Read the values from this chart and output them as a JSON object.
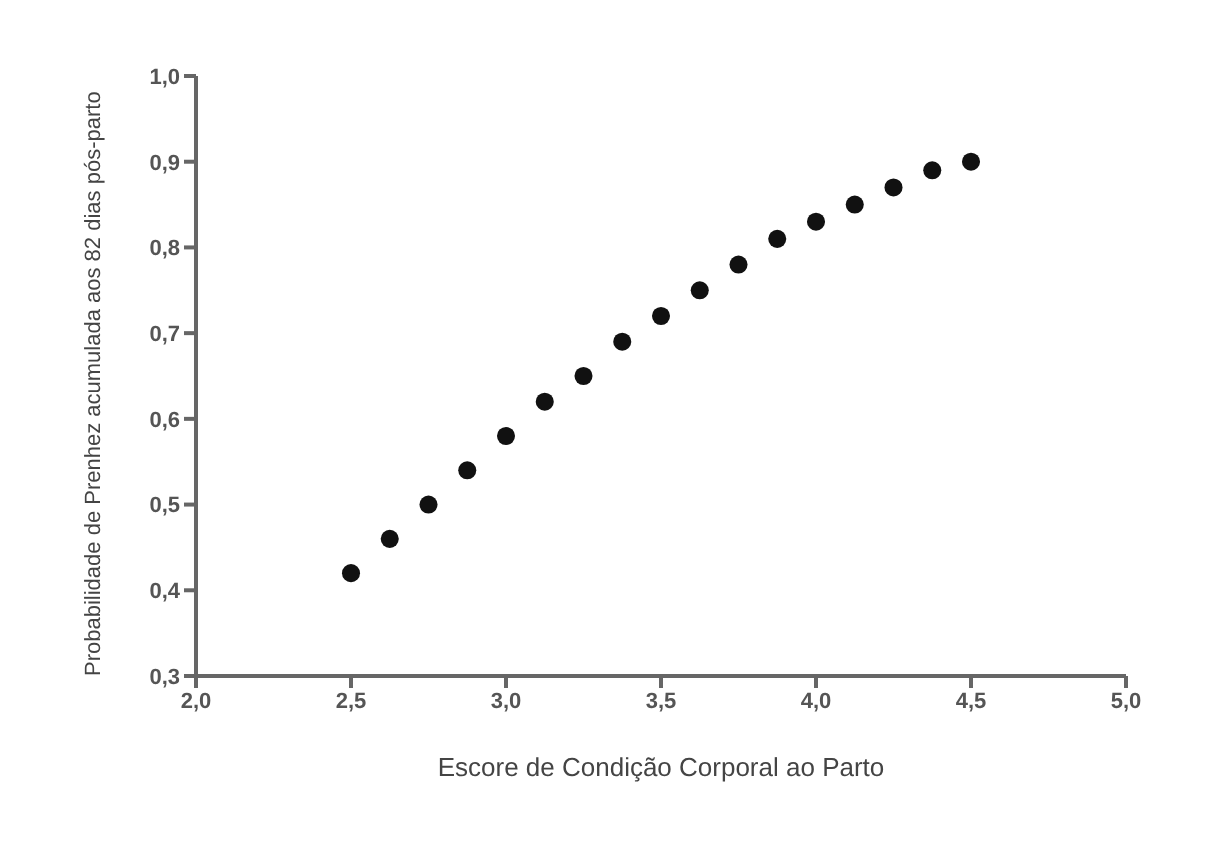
{
  "chart_data": {
    "type": "scatter",
    "xlabel": "Escore de Condição Corporal ao Parto",
    "ylabel": "Probabilidade de Prenhez acumulada aos 82 dias pós-parto",
    "x": [
      2.5,
      2.625,
      2.75,
      2.875,
      3.0,
      3.125,
      3.25,
      3.375,
      3.5,
      3.625,
      3.75,
      3.875,
      4.0,
      4.125,
      4.25,
      4.375,
      4.5
    ],
    "series": [
      {
        "color": "#111111",
        "values": [
          0.42,
          0.46,
          0.5,
          0.54,
          0.58,
          0.62,
          0.65,
          0.69,
          0.72,
          0.75,
          0.78,
          0.81,
          0.83,
          0.85,
          0.87,
          0.89,
          0.9
        ]
      }
    ],
    "xlim": [
      2.0,
      5.0
    ],
    "xticks": [
      {
        "value": 2.0,
        "label": "2,0"
      },
      {
        "value": 2.5,
        "label": "2,5"
      },
      {
        "value": 3.0,
        "label": "3,0"
      },
      {
        "value": 3.5,
        "label": "3,5"
      },
      {
        "value": 4.0,
        "label": "4,0"
      },
      {
        "value": 4.5,
        "label": "4,5"
      },
      {
        "value": 5.0,
        "label": "5,0"
      }
    ],
    "ylim": [
      0.3,
      1.0
    ],
    "yticks": [
      {
        "value": 0.3,
        "label": "0,3"
      },
      {
        "value": 0.4,
        "label": "0,4"
      },
      {
        "value": 0.5,
        "label": "0,5"
      },
      {
        "value": 0.6,
        "label": "0,6"
      },
      {
        "value": 0.7,
        "label": "0,7"
      },
      {
        "value": 0.8,
        "label": "0,8"
      },
      {
        "value": 0.9,
        "label": "0,9"
      },
      {
        "value": 1.0,
        "label": "1,0"
      }
    ],
    "grid": false,
    "legend": false,
    "marker": "circle"
  }
}
